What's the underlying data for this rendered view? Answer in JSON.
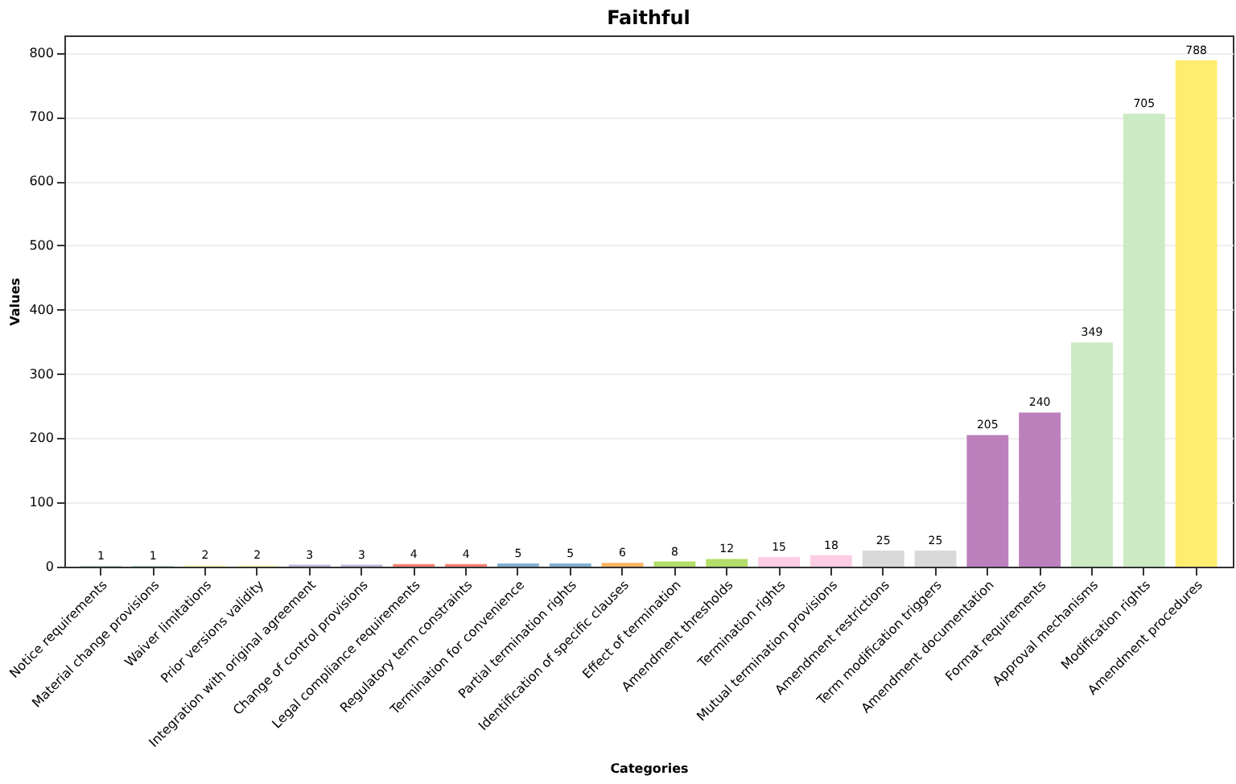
{
  "chart_data": {
    "type": "bar",
    "title": "Faithful",
    "xlabel": "Categories",
    "ylabel": "Values",
    "categories": [
      "Notice requirements",
      "Material change provisions",
      "Waiver limitations",
      "Prior versions validity",
      "Integration with original agreement",
      "Change of control provisions",
      "Legal compliance requirements",
      "Regulatory term constraints",
      "Termination for convenience",
      "Partial termination rights",
      "Identification of specific clauses",
      "Effect of termination",
      "Amendment thresholds",
      "Termination rights",
      "Mutual termination provisions",
      "Amendment restrictions",
      "Term modification triggers",
      "Amendment documentation",
      "Format requirements",
      "Approval mechanisms",
      "Modification rights",
      "Amendment procedures"
    ],
    "values": [
      1,
      1,
      2,
      2,
      3,
      3,
      4,
      4,
      5,
      5,
      6,
      8,
      12,
      15,
      18,
      25,
      25,
      205,
      240,
      349,
      705,
      788
    ],
    "colors": [
      "#8dd3c7",
      "#8dd3c7",
      "#ffffb3",
      "#ffffb3",
      "#bebada",
      "#bebada",
      "#fb8072",
      "#fb8072",
      "#80b1d3",
      "#80b1d3",
      "#fdb462",
      "#b3de69",
      "#b3de69",
      "#fccde5",
      "#fccde5",
      "#d9d9d9",
      "#d9d9d9",
      "#bc80bd",
      "#bc80bd",
      "#ccebc5",
      "#ccebc5",
      "#ffed6f"
    ],
    "ylim": [
      0,
      827
    ],
    "yticks": [
      0,
      100,
      200,
      300,
      400,
      500,
      600,
      700,
      800
    ],
    "grid": "y",
    "data_labels": true
  }
}
